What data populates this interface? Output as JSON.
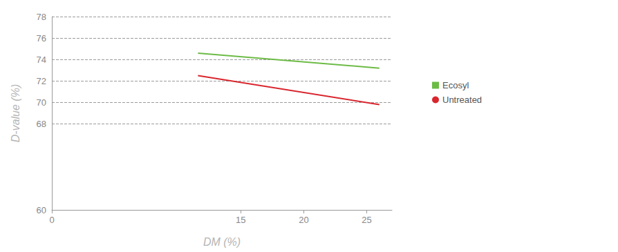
{
  "chart_data": {
    "type": "line",
    "x_label": "DM (%)",
    "y_label": "D-value (%)",
    "x": [
      11.6,
      26.0
    ],
    "series": [
      {
        "name": "Ecosyl",
        "color": "#6cbb45",
        "marker": "square",
        "values": [
          74.6,
          73.2
        ]
      },
      {
        "name": "Untreated",
        "color": "#d9252d",
        "marker": "circle",
        "values": [
          72.5,
          69.8
        ]
      }
    ],
    "xlim": [
      0,
      27
    ],
    "xticks": [
      0,
      15,
      20,
      25
    ],
    "ylim": [
      60,
      78
    ],
    "yticks": [
      60,
      68,
      70,
      72,
      74,
      76,
      78
    ],
    "grid": true,
    "legend": "right"
  }
}
